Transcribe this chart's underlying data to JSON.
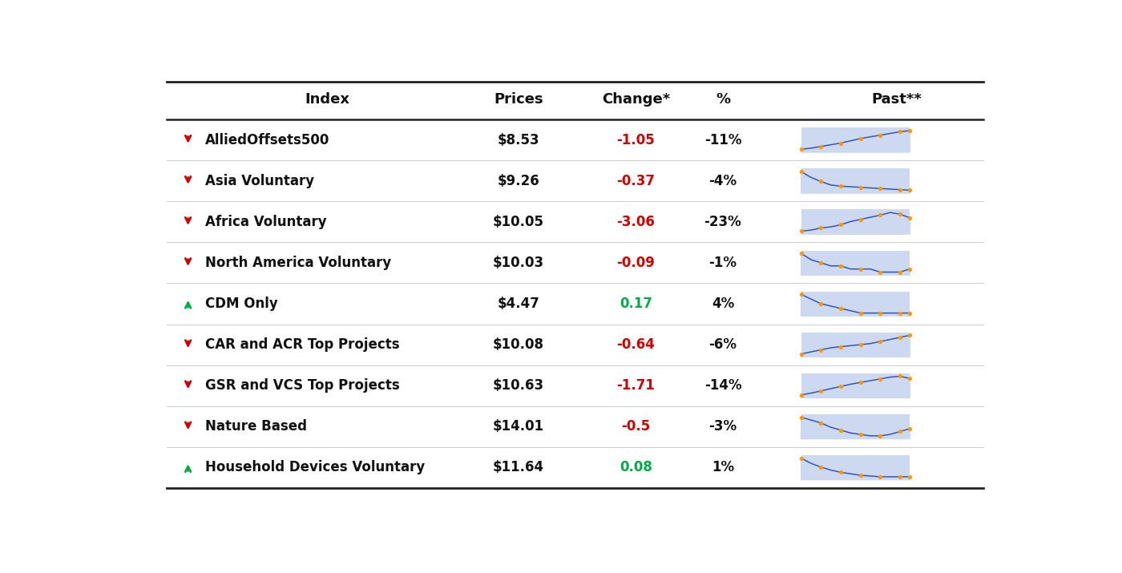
{
  "headers": [
    "Index",
    "Prices",
    "Change*",
    "%",
    "Past**"
  ],
  "rows": [
    {
      "name": "AlliedOffsets500",
      "price": "$8.53",
      "change": "-1.05",
      "pct": "-11%",
      "direction": "down",
      "sparkline": [
        0.25,
        0.27,
        0.3,
        0.33,
        0.36,
        0.4,
        0.44,
        0.47,
        0.5,
        0.53,
        0.56,
        0.58
      ]
    },
    {
      "name": "Asia Voluntary",
      "price": "$9.26",
      "change": "-0.37",
      "pct": "-4%",
      "direction": "down",
      "sparkline": [
        0.75,
        0.65,
        0.58,
        0.52,
        0.5,
        0.49,
        0.48,
        0.47,
        0.46,
        0.45,
        0.44,
        0.43
      ]
    },
    {
      "name": "Africa Voluntary",
      "price": "$10.05",
      "change": "-3.06",
      "pct": "-23%",
      "direction": "down",
      "sparkline": [
        0.3,
        0.32,
        0.36,
        0.38,
        0.42,
        0.48,
        0.52,
        0.56,
        0.6,
        0.65,
        0.62,
        0.55
      ]
    },
    {
      "name": "North America Voluntary",
      "price": "$10.03",
      "change": "-0.09",
      "pct": "-1%",
      "direction": "down",
      "sparkline": [
        0.8,
        0.78,
        0.77,
        0.76,
        0.76,
        0.75,
        0.75,
        0.75,
        0.74,
        0.74,
        0.74,
        0.75
      ]
    },
    {
      "name": "CDM Only",
      "price": "$4.47",
      "change": "0.17",
      "pct": "4%",
      "direction": "up",
      "sparkline": [
        0.35,
        0.33,
        0.31,
        0.3,
        0.29,
        0.28,
        0.27,
        0.27,
        0.27,
        0.27,
        0.27,
        0.27
      ]
    },
    {
      "name": "CAR and ACR Top Projects",
      "price": "$10.08",
      "change": "-0.64",
      "pct": "-6%",
      "direction": "down",
      "sparkline": [
        0.4,
        0.42,
        0.44,
        0.46,
        0.47,
        0.48,
        0.49,
        0.5,
        0.52,
        0.54,
        0.56,
        0.58
      ]
    },
    {
      "name": "GSR and VCS Top Projects",
      "price": "$10.63",
      "change": "-1.71",
      "pct": "-14%",
      "direction": "down",
      "sparkline": [
        0.28,
        0.32,
        0.37,
        0.42,
        0.47,
        0.52,
        0.56,
        0.6,
        0.64,
        0.68,
        0.7,
        0.65
      ]
    },
    {
      "name": "Nature Based",
      "price": "$14.01",
      "change": "-0.5",
      "pct": "-3%",
      "direction": "down",
      "sparkline": [
        0.72,
        0.7,
        0.68,
        0.65,
        0.63,
        0.61,
        0.6,
        0.59,
        0.59,
        0.6,
        0.62,
        0.64
      ]
    },
    {
      "name": "Household Devices Voluntary",
      "price": "$11.64",
      "change": "0.08",
      "pct": "1%",
      "direction": "up",
      "sparkline": [
        0.62,
        0.55,
        0.5,
        0.46,
        0.43,
        0.41,
        0.39,
        0.38,
        0.37,
        0.37,
        0.37,
        0.37
      ]
    }
  ],
  "bg_color": "#ffffff",
  "header_color": "#111111",
  "line_color": "#cccccc",
  "thick_line_color": "#222222",
  "red_color": "#cc0000",
  "green_color": "#00aa44",
  "spark_line_color": "#3355bb",
  "spark_fill_color": "#ccd9f0",
  "spark_dot_color": "#ff9900",
  "header_fontsize": 13,
  "row_fontsize": 12,
  "figure_width": 14.0,
  "figure_height": 7.15
}
